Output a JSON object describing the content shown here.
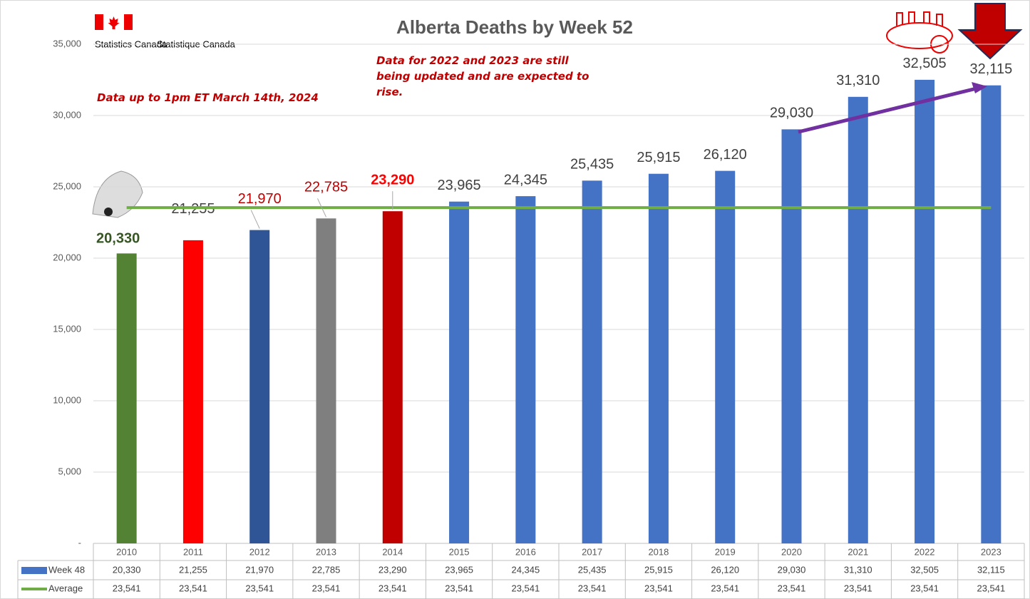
{
  "chart_data": {
    "type": "bar",
    "title": "Alberta Deaths by Week 52",
    "logo": {
      "english": "Statistics Canada",
      "french": "Statistique Canada"
    },
    "annotations": [
      "Data up to 1pm ET March 14th, 2024",
      "Data for 2022 and 2023 are still being updated and are expected to rise."
    ],
    "categories": [
      "2010",
      "2011",
      "2012",
      "2013",
      "2014",
      "2015",
      "2016",
      "2017",
      "2018",
      "2019",
      "2020",
      "2021",
      "2022",
      "2023"
    ],
    "series": [
      {
        "name": "Week 48",
        "type": "bar",
        "color": "#4472c4",
        "bar_colors": [
          "#548235",
          "#ff0000",
          "#2f5597",
          "#7f7f7f",
          "#c00000",
          "#4472c4",
          "#4472c4",
          "#4472c4",
          "#4472c4",
          "#4472c4",
          "#4472c4",
          "#4472c4",
          "#4472c4",
          "#4472c4"
        ],
        "label_colors": [
          "#375623",
          "#404040",
          "#c00000",
          "#c00000",
          "#ff0000",
          "#404040",
          "#404040",
          "#404040",
          "#404040",
          "#404040",
          "#404040",
          "#404040",
          "#404040",
          "#404040"
        ],
        "values": [
          20330,
          21255,
          21970,
          22785,
          23290,
          23965,
          24345,
          25435,
          25915,
          26120,
          29030,
          31310,
          32505,
          32115
        ],
        "value_labels": [
          "20,330",
          "21,255",
          "21,970",
          "22,785",
          "23,290",
          "23,965",
          "24,345",
          "25,435",
          "25,915",
          "26,120",
          "29,030",
          "31,310",
          "32,505",
          "32,115"
        ]
      },
      {
        "name": "Average",
        "type": "line",
        "color": "#70ad47",
        "values": [
          23541,
          23541,
          23541,
          23541,
          23541,
          23541,
          23541,
          23541,
          23541,
          23541,
          23541,
          23541,
          23541,
          23541
        ],
        "value_labels": [
          "23,541",
          "23,541",
          "23,541",
          "23,541",
          "23,541",
          "23,541",
          "23,541",
          "23,541",
          "23,541",
          "23,541",
          "23,541",
          "23,541",
          "23,541",
          "23,541"
        ]
      }
    ],
    "ylim": [
      0,
      35000
    ],
    "yticks": [
      {
        "value": 0,
        "label": "-"
      },
      {
        "value": 5000,
        "label": "5,000"
      },
      {
        "value": 10000,
        "label": "10,000"
      },
      {
        "value": 15000,
        "label": "15,000"
      },
      {
        "value": 20000,
        "label": "20,000"
      },
      {
        "value": 25000,
        "label": "25,000"
      },
      {
        "value": 30000,
        "label": "30,000"
      },
      {
        "value": 35000,
        "label": "35,000"
      }
    ],
    "grid": true
  }
}
